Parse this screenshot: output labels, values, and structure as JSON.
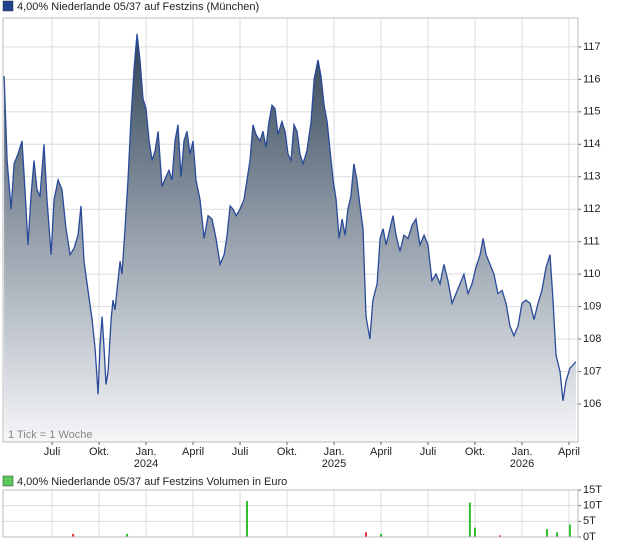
{
  "chart_data": [
    {
      "type": "area",
      "title": "4,00% Niederlande 05/37 auf Festzins (München)",
      "legend_color": "#1f3f8f",
      "annotation": "1 Tick = 1 Woche",
      "color": "#2a4a9a",
      "x": [
        2023.245,
        2023.261,
        2023.282,
        2023.298,
        2023.319,
        2023.34,
        2023.356,
        2023.372,
        2023.388,
        2023.404,
        2023.42,
        2023.436,
        2023.457,
        2023.473,
        2023.495,
        2023.511,
        2023.532,
        2023.553,
        2023.574,
        2023.596,
        2023.617,
        2023.638,
        2023.654,
        2023.67,
        2023.691,
        2023.713,
        2023.729,
        2023.745,
        2023.755,
        2023.766,
        2023.777,
        2023.787,
        2023.798,
        2023.814,
        2023.824,
        2023.835,
        2023.851,
        2023.862,
        2023.872,
        2023.888,
        2023.904,
        2023.92,
        2023.936,
        2023.952,
        2023.968,
        2023.984,
        2024.0,
        2024.016,
        2024.032,
        2024.048,
        2024.064,
        2024.085,
        2024.106,
        2024.122,
        2024.138,
        2024.154,
        2024.17,
        2024.186,
        2024.202,
        2024.218,
        2024.234,
        2024.25,
        2024.266,
        2024.287,
        2024.309,
        2024.33,
        2024.351,
        2024.372,
        2024.394,
        2024.415,
        2024.431,
        2024.447,
        2024.463,
        2024.479,
        2024.5,
        2024.521,
        2024.537,
        2024.553,
        2024.569,
        2024.585,
        2024.606,
        2024.622,
        2024.638,
        2024.654,
        2024.67,
        2024.686,
        2024.702,
        2024.723,
        2024.739,
        2024.755,
        2024.771,
        2024.787,
        2024.803,
        2024.819,
        2024.835,
        2024.856,
        2024.878,
        2024.894,
        2024.915,
        2024.931,
        2024.947,
        2024.963,
        2024.979,
        2024.995,
        2025.011,
        2025.027,
        2025.043,
        2025.059,
        2025.074,
        2025.09,
        2025.106,
        2025.122,
        2025.138,
        2025.154,
        2025.17,
        2025.191,
        2025.207,
        2025.229,
        2025.245,
        2025.261,
        2025.277,
        2025.298,
        2025.314,
        2025.33,
        2025.351,
        2025.372,
        2025.394,
        2025.415,
        2025.436,
        2025.457,
        2025.479,
        2025.5,
        2025.521,
        2025.543,
        2025.564,
        2025.585,
        2025.606,
        2025.628,
        2025.649,
        2025.67,
        2025.691,
        2025.713,
        2025.734,
        2025.755,
        2025.777,
        2025.793,
        2025.809,
        2025.83,
        2025.851,
        2025.872,
        2025.894,
        2025.915,
        2025.936,
        2025.957,
        2025.979,
        2026.0,
        2026.021,
        2026.043,
        2026.064,
        2026.085,
        2026.106,
        2026.128,
        2026.149,
        2026.165,
        2026.181,
        2026.202,
        2026.218,
        2026.234,
        2026.255,
        2026.287
      ],
      "values": [
        116.1,
        113.5,
        112.0,
        113.4,
        113.7,
        114.1,
        112.6,
        110.9,
        112.4,
        113.5,
        112.6,
        112.4,
        114.0,
        112.3,
        110.6,
        112.3,
        112.9,
        112.6,
        111.4,
        110.6,
        110.8,
        111.2,
        112.1,
        110.4,
        109.5,
        108.6,
        107.7,
        106.3,
        107.8,
        108.7,
        107.7,
        106.6,
        107.0,
        108.6,
        109.2,
        108.9,
        109.8,
        110.4,
        110.0,
        111.4,
        112.9,
        114.8,
        116.3,
        117.4,
        116.6,
        115.4,
        115.1,
        114.1,
        113.5,
        113.8,
        114.4,
        112.7,
        113.0,
        113.2,
        112.9,
        114.1,
        114.6,
        113.0,
        114.1,
        114.4,
        113.7,
        114.1,
        112.9,
        112.3,
        111.1,
        111.8,
        111.7,
        111.1,
        110.3,
        110.6,
        111.2,
        112.1,
        112.0,
        111.8,
        112.0,
        112.3,
        112.9,
        113.5,
        114.6,
        114.3,
        114.1,
        114.4,
        113.9,
        114.7,
        115.2,
        115.1,
        114.3,
        114.7,
        114.4,
        113.7,
        113.5,
        114.6,
        114.4,
        113.7,
        113.4,
        113.8,
        114.7,
        116.0,
        116.6,
        116.1,
        115.2,
        114.7,
        113.8,
        112.9,
        112.3,
        111.1,
        111.7,
        111.2,
        112.0,
        112.4,
        113.4,
        112.9,
        112.1,
        111.4,
        108.7,
        108.0,
        109.2,
        109.7,
        111.1,
        111.4,
        110.9,
        111.4,
        111.8,
        111.2,
        110.7,
        111.2,
        111.1,
        111.5,
        111.7,
        110.9,
        111.2,
        110.9,
        109.8,
        110.0,
        109.7,
        110.3,
        109.8,
        109.1,
        109.4,
        109.7,
        110.0,
        109.4,
        109.7,
        110.2,
        110.6,
        111.1,
        110.6,
        110.3,
        110.0,
        109.4,
        109.5,
        109.1,
        108.4,
        108.1,
        108.4,
        109.1,
        109.2,
        109.1,
        108.6,
        109.1,
        109.5,
        110.2,
        110.6,
        109.2,
        107.5,
        107.0,
        106.1,
        106.7,
        107.1,
        107.3
      ],
      "xlim": [
        2023.239,
        2026.298
      ],
      "xticks": [
        {
          "value": 2023.5,
          "label": "Juli"
        },
        {
          "value": 2023.75,
          "label": "Okt."
        },
        {
          "value": 2024,
          "label": "Jan."
        },
        {
          "value": 2024.25,
          "label": "April"
        },
        {
          "value": 2024.5,
          "label": "Juli"
        },
        {
          "value": 2024.75,
          "label": "Okt."
        },
        {
          "value": 2025,
          "label": "Jan."
        },
        {
          "value": 2025.25,
          "label": "April"
        },
        {
          "value": 2025.5,
          "label": "Juli"
        },
        {
          "value": 2025.75,
          "label": "Okt."
        },
        {
          "value": 2026,
          "label": "Jan."
        },
        {
          "value": 2026.25,
          "label": "April"
        }
      ],
      "year_ticks": [
        2024,
        2025,
        2026
      ],
      "ylim": [
        104.83,
        117.89
      ],
      "yticks": [
        106,
        107,
        108,
        109,
        110,
        111,
        112,
        113,
        114,
        115,
        116,
        117
      ],
      "grid": true
    },
    {
      "type": "bar",
      "title": "4,00% Niederlande 05/37 auf Festzins Volumen in Euro",
      "legend_color": "#5cc85c",
      "x": [
        2023.612,
        2023.899,
        2024.537,
        2025.17,
        2025.25,
        2025.723,
        2025.75,
        2025.883,
        2026.133,
        2026.186,
        2026.255
      ],
      "values": [
        1,
        1,
        11.5,
        1.5,
        1,
        11,
        3,
        0.5,
        2.5,
        1.5,
        4
      ],
      "colors": [
        "#e03030",
        "#30c030",
        "#30c030",
        "#e03030",
        "#30c030",
        "#30c030",
        "#30c030",
        "#e03030",
        "#30c030",
        "#30c030",
        "#30c030"
      ],
      "xlim": [
        2023.239,
        2026.298
      ],
      "ylim": [
        0,
        15
      ],
      "yticks": [
        {
          "value": 0,
          "label": "0T"
        },
        {
          "value": 5,
          "label": "5T"
        },
        {
          "value": 10,
          "label": "10T"
        },
        {
          "value": 15,
          "label": "15T"
        }
      ],
      "grid": true
    }
  ]
}
